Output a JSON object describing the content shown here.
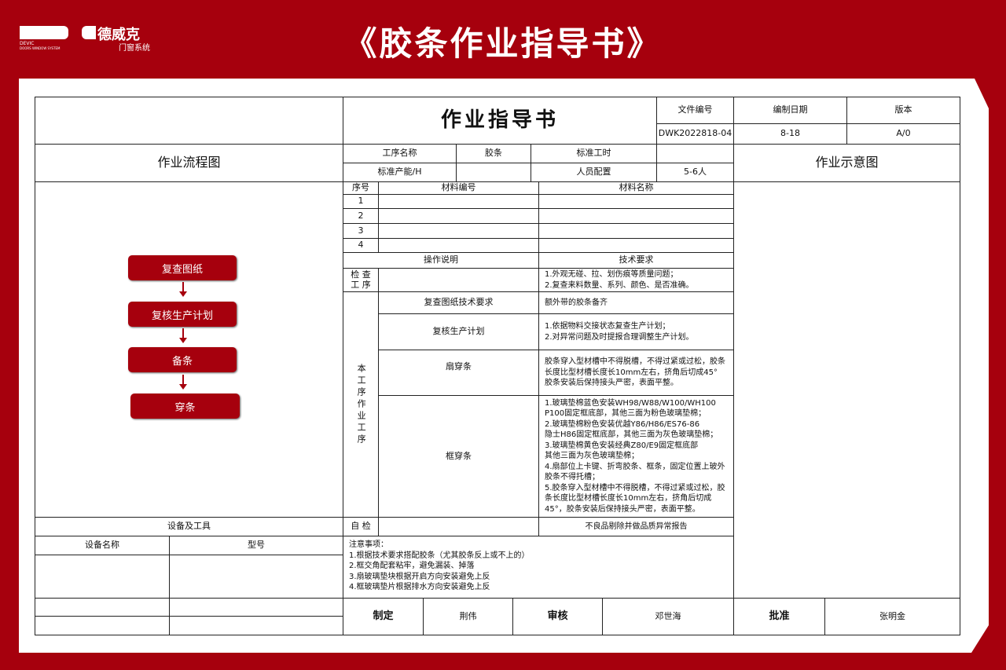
{
  "header": {
    "title": "《胶条作业指导书》",
    "logo_en": "DEVIC",
    "logo_en_sub": "DOORS WINDOW SYSTEM",
    "logo_cn": "德威克",
    "logo_cn_sub": "门窗系统"
  },
  "doc": {
    "title": "作业指导书",
    "file_no_label": "文件编号",
    "file_no": "DWK2022818-04",
    "date_label": "编制日期",
    "date": "8-18",
    "version_label": "版本",
    "version": "A/0"
  },
  "info": {
    "flow_title": "作业流程图",
    "process_name_label": "工序名称",
    "process_name": "胶条",
    "std_time_label": "标准工时",
    "std_time": "",
    "capacity_label": "标准产能/H",
    "capacity": "",
    "staff_label": "人员配置",
    "staff": "5-6人",
    "diagram_title": "作业示意图"
  },
  "materials": {
    "headers": [
      "序号",
      "材料编号",
      "材料名称"
    ],
    "rows": [
      "1",
      "2",
      "3",
      "4"
    ]
  },
  "ops": {
    "op_label": "操作说明",
    "req_label": "技术要求",
    "check_label": "检 查\n工 序",
    "check_req": "1.外观无碰、拉、划伤痕等质量问题；\n2.复查来料数量、系列、颜色、是否准确。",
    "this_label": "本工序作业工序",
    "steps": [
      {
        "name": "复查图纸技术要求",
        "req": "额外带的胶条备齐"
      },
      {
        "name": "复核生产计划",
        "req": "1.依据物料交接状态复查生产计划；\n2.对异常问题及时提报合理调整生产计划。"
      },
      {
        "name": "扇穿条",
        "req": "胶条穿入型材槽中不得脱槽，不得过紧或过松，胶条长度比型材槽长度长10mm左右，挤角后切成45°\n胶条安装后保持接头严密，表面平整。"
      },
      {
        "name": "框穿条",
        "req": "1.玻璃垫棉蓝色安装WH98/W88/W100/WH100\nP100固定框底部，其他三面为粉色玻璃垫棉；\n2.玻璃垫棉粉色安装优越Y86/H86/ES76-86\n隐士H86固定框底部，其他三面为灰色玻璃垫棉；\n3.玻璃垫棉黄色安装经典Z80/E9固定框底部\n其他三面为灰色玻璃垫棉；\n4.扇部位上卡键、折弯胶条、框条，固定位置上玻外胶条不得托槽；\n5.胶条穿入型材槽中不得脱槽，不得过紧或过松，胶条长度比型材槽长度长10mm左右，挤角后切成45°，胶条安装后保持接头严密，表面平整。"
      }
    ],
    "self_check_label": "自 检",
    "self_check_req": "不良品剔除并做品质异常报告"
  },
  "flow": [
    "复查图纸",
    "复核生产计划",
    "备条",
    "穿条"
  ],
  "equipment": {
    "title": "设备及工具",
    "name_label": "设备名称",
    "model_label": "型号"
  },
  "notes": "注意事项：\n1.根据技术要求搭配胶条（尤其胶条反上或不上的）\n2.框交角配套粘牢，避免漏装、掉落\n3.扇玻璃垫块根据开启方向安装避免上反\n4.框玻璃垫片根据排水方向安装避免上反",
  "sign": {
    "made_label": "制定",
    "made": "荆伟",
    "review_label": "审核",
    "review": "邓世海",
    "approve_label": "批准",
    "approve": "张明金"
  },
  "colors": {
    "brand_red": "#a6000d"
  }
}
